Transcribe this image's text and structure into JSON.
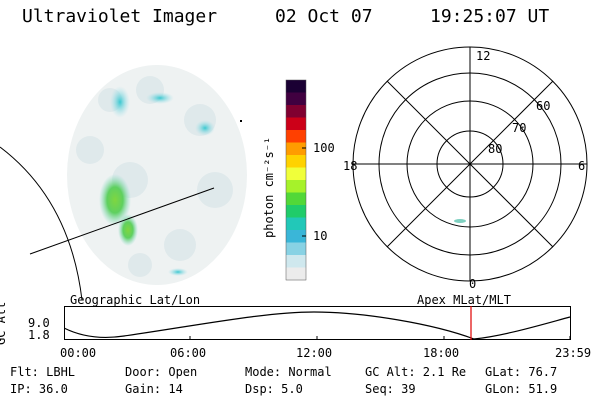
{
  "header": {
    "title": "Ultraviolet Imager",
    "date": "02 Oct 07",
    "time": "19:25:07 UT"
  },
  "colorbar": {
    "label": "photon cm⁻²s⁻¹",
    "ticks": [
      "100",
      "10"
    ],
    "colors": [
      "#1a0033",
      "#400040",
      "#800030",
      "#cc0018",
      "#ff4000",
      "#ff9c00",
      "#ffd200",
      "#f0ff3a",
      "#a6f22a",
      "#52d838",
      "#20cc6a",
      "#22c8b8",
      "#3ab6d8",
      "#88d2e4",
      "#cfe8ee",
      "#ececec"
    ]
  },
  "polar": {
    "labels": {
      "top": "12",
      "bottom": "0",
      "left": "18",
      "right": "6"
    },
    "lat_labels": [
      "60",
      "70",
      "80"
    ]
  },
  "strip": {
    "left_title": "Geographic Lat/Lon",
    "right_title": "Apex MLat/MLT",
    "ylabel": "GC Alt",
    "ytick_top": "9.0",
    "ytick_bottom": "1.8",
    "xticks": [
      "00:00",
      "06:00",
      "12:00",
      "18:00",
      "23:59"
    ],
    "marker_color": "#e00000"
  },
  "meta": {
    "flt": "Flt: LBHL",
    "ip": "IP: 36.0",
    "door": "Door: Open",
    "gain": "Gain: 14",
    "mode": "Mode: Normal",
    "dsp": "Dsp:    5.0",
    "gcalt": "GC Alt: 2.1 Re",
    "seq": "Seq: 39",
    "glat": "GLat: 76.7",
    "glon": "GLon: 51.9"
  }
}
